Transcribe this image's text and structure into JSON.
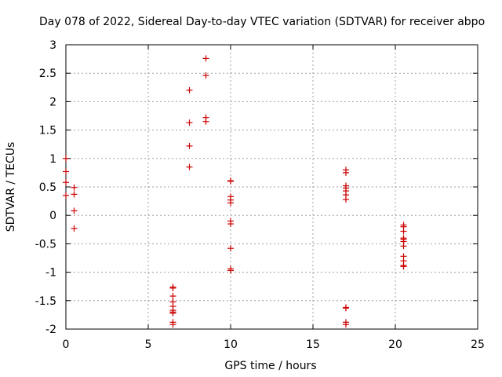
{
  "chart_data": {
    "type": "scatter",
    "title": "Day 078 of 2022, Sidereal Day-to-day VTEC variation (SDTVAR) for receiver abpo",
    "xlabel": "GPS time / hours",
    "ylabel": "SDTVAR / TECUs",
    "xlim": [
      0,
      25
    ],
    "ylim": [
      -2,
      3
    ],
    "xticks": [
      0,
      5,
      10,
      15,
      20,
      25
    ],
    "yticks": [
      -2,
      -1.5,
      -1,
      -0.5,
      0,
      0.5,
      1,
      1.5,
      2,
      2.5,
      3
    ],
    "xtick_labels": [
      "0",
      "5",
      "10",
      "15",
      "20",
      "25"
    ],
    "ytick_labels": [
      "-2",
      "-1.5",
      "-1",
      "-0.5",
      "0",
      "0.5",
      "1",
      "1.5",
      "2",
      "2.5",
      "3"
    ],
    "grid": true,
    "marker": "+",
    "series": [
      {
        "name": "SDTVAR",
        "color": "#cc0000",
        "points": [
          [
            0.0,
            1.0
          ],
          [
            0.0,
            0.77
          ],
          [
            0.0,
            0.58
          ],
          [
            0.0,
            0.35
          ],
          [
            0.5,
            0.49
          ],
          [
            0.5,
            0.37
          ],
          [
            0.5,
            0.08
          ],
          [
            0.5,
            -0.23
          ],
          [
            6.5,
            -1.26
          ],
          [
            6.5,
            -1.28
          ],
          [
            6.5,
            -1.42
          ],
          [
            6.5,
            -1.52
          ],
          [
            6.5,
            -1.6
          ],
          [
            6.5,
            -1.67
          ],
          [
            6.5,
            -1.7
          ],
          [
            6.5,
            -1.72
          ],
          [
            6.5,
            -1.88
          ],
          [
            6.5,
            -1.92
          ],
          [
            7.5,
            2.2
          ],
          [
            7.5,
            1.63
          ],
          [
            7.5,
            1.22
          ],
          [
            7.5,
            0.85
          ],
          [
            8.5,
            2.76
          ],
          [
            8.5,
            2.46
          ],
          [
            8.5,
            1.72
          ],
          [
            8.5,
            1.65
          ],
          [
            10.0,
            0.61
          ],
          [
            10.0,
            0.6
          ],
          [
            10.0,
            0.33
          ],
          [
            10.0,
            0.27
          ],
          [
            10.0,
            0.22
          ],
          [
            10.0,
            -0.1
          ],
          [
            10.0,
            -0.15
          ],
          [
            10.0,
            -0.58
          ],
          [
            10.0,
            -0.94
          ],
          [
            10.0,
            -0.97
          ],
          [
            17.0,
            0.8
          ],
          [
            17.0,
            0.75
          ],
          [
            17.0,
            0.52
          ],
          [
            17.0,
            0.48
          ],
          [
            17.0,
            0.43
          ],
          [
            17.0,
            0.36
          ],
          [
            17.0,
            0.28
          ],
          [
            17.0,
            -1.62
          ],
          [
            17.0,
            -1.63
          ],
          [
            17.0,
            -1.88
          ],
          [
            17.0,
            -1.92
          ],
          [
            20.5,
            -0.17
          ],
          [
            20.5,
            -0.2
          ],
          [
            20.5,
            -0.28
          ],
          [
            20.5,
            -0.4
          ],
          [
            20.5,
            -0.42
          ],
          [
            20.5,
            -0.46
          ],
          [
            20.5,
            -0.54
          ],
          [
            20.5,
            -0.72
          ],
          [
            20.5,
            -0.8
          ],
          [
            20.5,
            -0.88
          ],
          [
            20.5,
            -0.9
          ]
        ]
      }
    ]
  }
}
